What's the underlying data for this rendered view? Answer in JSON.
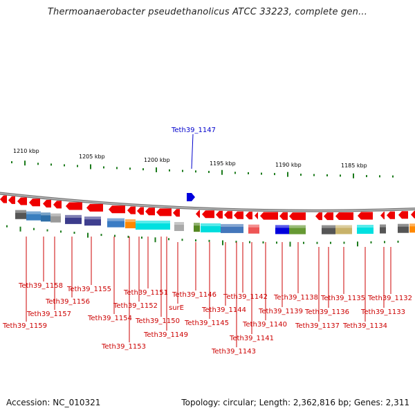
{
  "header": {
    "title": "Thermoanaerobacter pseudethanolicus ATCC 33223, complete gen..."
  },
  "footer": {
    "accession": "Accession: NC_010321",
    "topology": "Topology: circular; Length: 2,362,816 bp; Genes: 2,311"
  },
  "scale": {
    "ticks": [
      "1210 kbp",
      "1205 kbp",
      "1200 kbp",
      "1195 kbp",
      "1190 kbp",
      "1185 kbp"
    ]
  },
  "colors": {
    "gene_arrow": "#ee0000",
    "highlight_gene": "#0000cc",
    "label_red": "#cc0000",
    "label_blue": "#0000cc",
    "tick_green": "#1a7a1a",
    "backbone": "#888888"
  },
  "highlight": {
    "label": "Teth39_1147"
  },
  "gene_labels": [
    "Teth39_1159",
    "Teth39_1158",
    "Teth39_1157",
    "Teth39_1156",
    "Teth39_1155",
    "Teth39_1154",
    "Teth39_1153",
    "Teth39_1152",
    "Teth39_1151",
    "Teth39_1150",
    "Teth39_1149",
    "surE",
    "Teth39_1146",
    "Teth39_1145",
    "Teth39_1144",
    "Teth39_1143",
    "Teth39_1142",
    "Teth39_1141",
    "Teth39_1140",
    "Teth39_1139",
    "Teth39_1138",
    "Teth39_1137",
    "Teth39_1136",
    "Teth39_1135",
    "Teth39_1134",
    "Teth39_1133",
    "Teth39_1132"
  ]
}
